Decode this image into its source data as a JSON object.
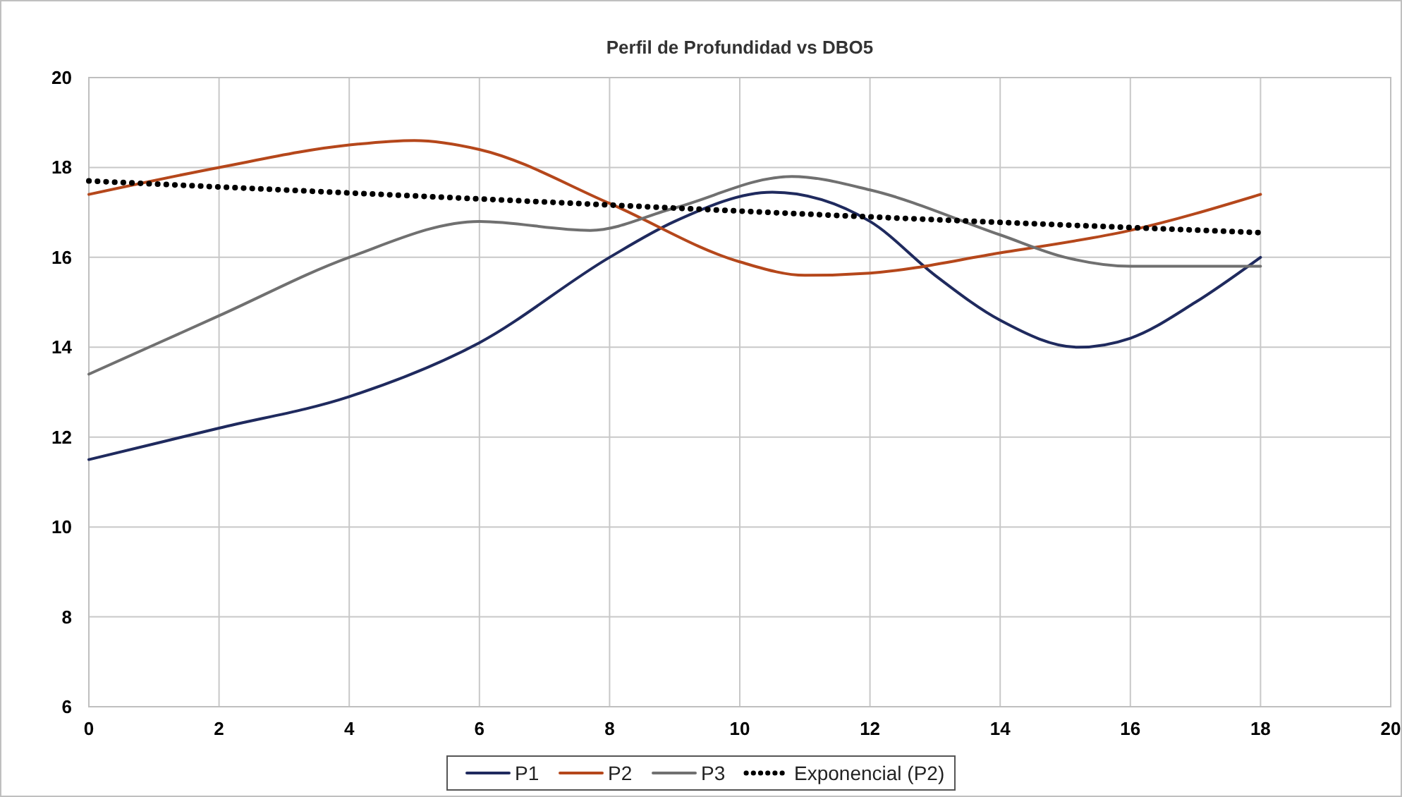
{
  "chart_data": {
    "type": "line",
    "title": "Perfil de Profundidad vs DBO5",
    "xlim": [
      0,
      20
    ],
    "xticks": [
      0,
      2,
      4,
      6,
      8,
      10,
      12,
      14,
      16,
      18,
      20
    ],
    "ylim": [
      6,
      20
    ],
    "yticks": [
      6,
      8,
      10,
      12,
      14,
      16,
      18,
      20
    ],
    "grid": true,
    "legend": "bottom",
    "marker": "none",
    "series": [
      {
        "name": "P1",
        "color": "#1f2a5e",
        "x": [
          0,
          2,
          4,
          6,
          8,
          9,
          10.5,
          12,
          13,
          14,
          15.2,
          16,
          17,
          18
        ],
        "values": [
          11.5,
          12.2,
          12.9,
          14.1,
          16.0,
          16.8,
          17.45,
          16.8,
          15.6,
          14.6,
          14.0,
          14.2,
          15.0,
          16.0
        ]
      },
      {
        "name": "P2",
        "color": "#b5471b",
        "x": [
          0,
          2,
          4,
          5,
          6,
          8,
          10,
          11,
          12,
          14,
          16,
          18
        ],
        "values": [
          17.4,
          18.0,
          18.5,
          18.6,
          18.4,
          17.2,
          15.9,
          15.6,
          15.65,
          16.1,
          16.6,
          17.4
        ]
      },
      {
        "name": "P3",
        "color": "#707070",
        "x": [
          0,
          2,
          4,
          6,
          7.7,
          9,
          10.8,
          12,
          14,
          15,
          16,
          18
        ],
        "values": [
          13.4,
          14.7,
          16.0,
          16.8,
          16.6,
          17.1,
          17.8,
          17.5,
          16.5,
          16.0,
          15.8,
          15.8
        ]
      },
      {
        "name": "Exponencial (P2)",
        "color": "#000000",
        "line_style": "dotted",
        "x": [
          0,
          6,
          12,
          18
        ],
        "values": [
          17.7,
          17.3,
          16.9,
          16.55
        ]
      }
    ]
  }
}
